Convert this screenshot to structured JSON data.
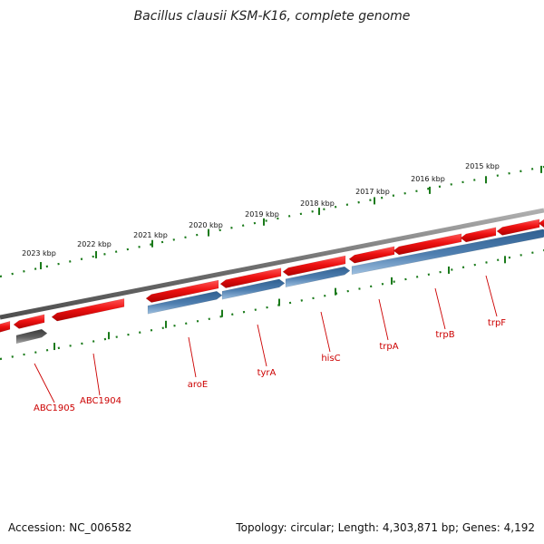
{
  "title": "Bacillus clausii KSM-K16, complete genome",
  "accession": "Accession: NC_006582",
  "summary": "Topology: circular; Length: 4,303,871 bp; Genes: 4,192",
  "scale_labels": [
    "2023 kbp",
    "2022 kbp",
    "2021 kbp",
    "2020 kbp",
    "2019 kbp",
    "2018 kbp",
    "2017 kbp",
    "2016 kbp",
    "2015 kbp"
  ],
  "gene_labels": [
    "ABC1905",
    "ABC1904",
    "aroE",
    "tyrA",
    "hisC",
    "trpA",
    "trpB",
    "trpF"
  ],
  "colors": {
    "forward_gene": "#ee1111",
    "reverse_gene": "#4f7fb0",
    "other_gene": "#606060",
    "backbone": "#808080",
    "ticks": "#1a7a1a",
    "label": "#cc0000"
  }
}
